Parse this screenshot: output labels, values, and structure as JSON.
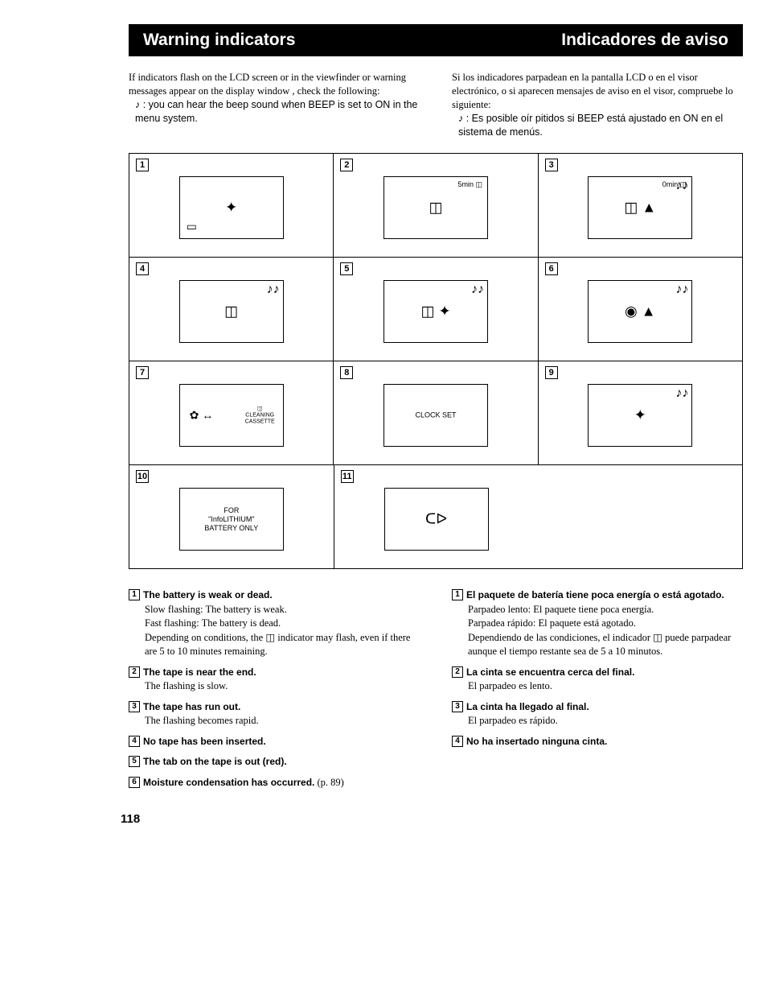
{
  "header": {
    "left": "Warning indicators",
    "right": "Indicadores de aviso"
  },
  "intro": {
    "en": {
      "p": "If indicators flash on the LCD screen or in the viewfinder or warning messages appear on the display window , check the following:",
      "note": "♪ : you can hear the beep sound when BEEP is set to ON in the menu system."
    },
    "es": {
      "p": "Si los indicadores parpadean en la pantalla LCD o en el visor electrónico, o si aparecen mensajes de aviso en el visor, compruebe lo siguiente:",
      "note": "♪ : Es posible oír pitidos si BEEP está ajustado en ON en el sistema de menús."
    }
  },
  "cells": [
    {
      "n": "1",
      "topRight": "",
      "notes": "",
      "center": "✦",
      "text": "",
      "bottomLeft": "▭"
    },
    {
      "n": "2",
      "topRight": "5min ◫",
      "notes": "",
      "center": "◫",
      "text": "",
      "bottomLeft": ""
    },
    {
      "n": "3",
      "topRight": "0min ◫",
      "notes": "♪♪",
      "center": "◫ ▲",
      "text": "",
      "bottomLeft": ""
    },
    {
      "n": "4",
      "topRight": "",
      "notes": "♪♪",
      "center": "◫",
      "text": "",
      "bottomLeft": ""
    },
    {
      "n": "5",
      "topRight": "",
      "notes": "♪♪",
      "center": "◫ ✦",
      "text": "",
      "bottomLeft": ""
    },
    {
      "n": "6",
      "topRight": "",
      "notes": "♪♪",
      "center": "◉ ▲",
      "text": "",
      "bottomLeft": ""
    },
    {
      "n": "7",
      "topRight": "",
      "notes": "",
      "center": "",
      "text": "",
      "bottomLeft": "",
      "cleaning": true
    },
    {
      "n": "8",
      "topRight": "",
      "notes": "",
      "center": "",
      "text": "CLOCK SET",
      "bottomLeft": ""
    },
    {
      "n": "9",
      "topRight": "",
      "notes": "♪♪",
      "center": "✦",
      "text": "",
      "bottomLeft": ""
    },
    {
      "n": "10",
      "topRight": "",
      "notes": "",
      "center": "",
      "text": "FOR\n\"InfoLITHIUM\"\nBATTERY ONLY",
      "bottomLeft": ""
    },
    {
      "n": "11",
      "topRight": "",
      "notes": "",
      "center": "ᑕᐅ",
      "text": "",
      "bottomLeft": ""
    }
  ],
  "cleaning_label": "CLEANING\nCASSETTE",
  "expl": {
    "en": [
      {
        "n": "1",
        "title": "The battery is weak or dead.",
        "body": "Slow flashing: The battery is weak.\nFast flashing: The battery is dead.\nDepending on conditions, the ◫ indicator may flash, even if there are 5 to 10 minutes remaining."
      },
      {
        "n": "2",
        "title": "The tape is near the end.",
        "body": "The flashing is slow."
      },
      {
        "n": "3",
        "title": "The tape has run out.",
        "body": "The flashing becomes rapid."
      },
      {
        "n": "4",
        "title": "No tape has been inserted.",
        "body": ""
      },
      {
        "n": "5",
        "title": "The tab on the tape is out (red).",
        "body": ""
      },
      {
        "n": "6",
        "title": "Moisture condensation has occurred.",
        "body": "",
        "suffix": " (p. 89)"
      }
    ],
    "es": [
      {
        "n": "1",
        "title": "El paquete de batería tiene poca energía o está agotado.",
        "body": "Parpadeo lento: El paquete tiene poca energía.\nParpadea rápido: El paquete está agotado.\nDependiendo de las condiciones, el indicador ◫ puede parpadear aunque el tiempo restante sea de 5 a 10 minutos."
      },
      {
        "n": "2",
        "title": "La cinta se encuentra cerca del final.",
        "body": "El parpadeo es lento."
      },
      {
        "n": "3",
        "title": "La cinta ha llegado al final.",
        "body": "El parpadeo es rápido."
      },
      {
        "n": "4",
        "title": "No ha insertado ninguna cinta.",
        "body": ""
      }
    ]
  },
  "page_number": "118"
}
